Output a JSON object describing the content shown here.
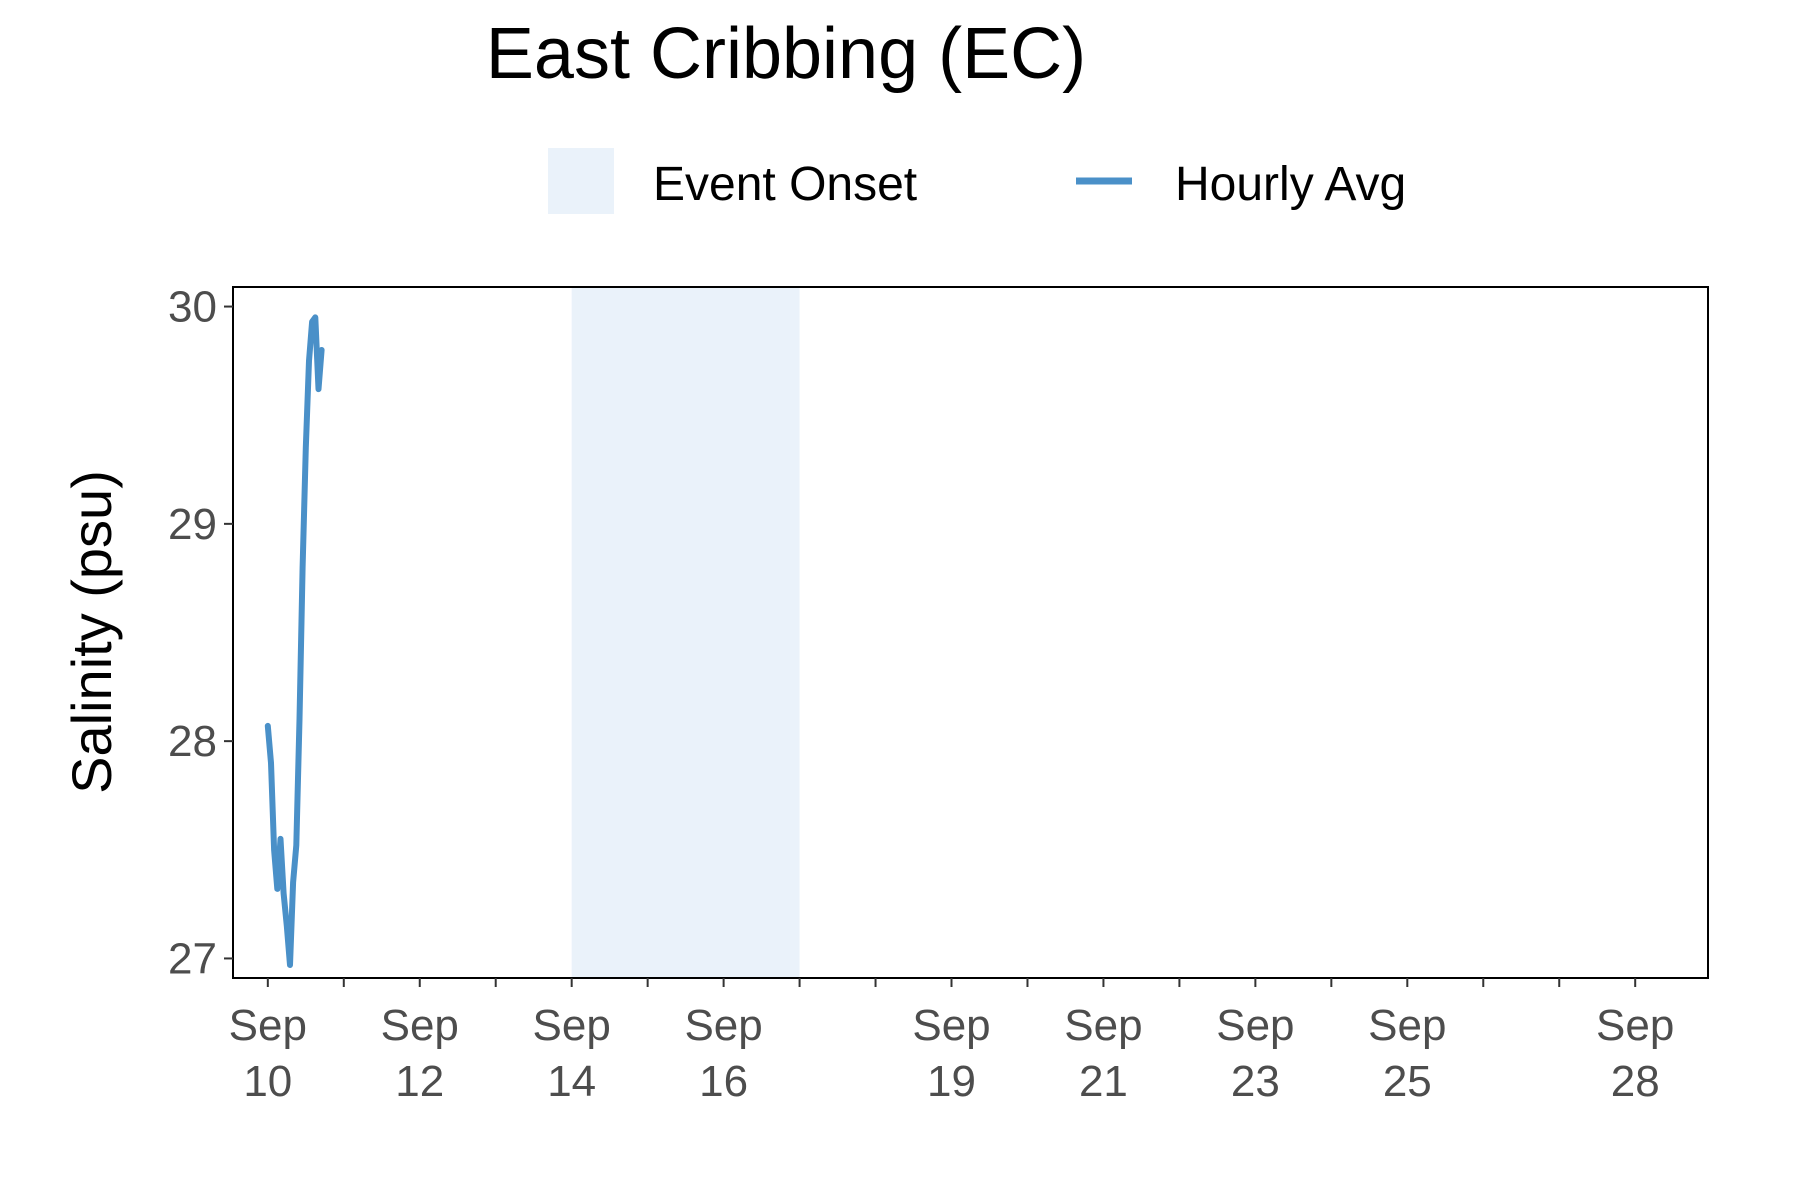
{
  "chart_data": {
    "type": "line",
    "title": "East Cribbing (EC)",
    "ylabel": "Salinity (psu)",
    "xlabel": "",
    "xlim": [
      "2023-09-09T13:00",
      "2023-09-28T23:00"
    ],
    "ylim": [
      26.91,
      30.09
    ],
    "y_ticks": [
      27,
      28,
      29,
      30
    ],
    "x_ticks": [
      {
        "date": "2023-09-10",
        "line1": "Sep",
        "line2": "10"
      },
      {
        "date": "2023-09-12",
        "line1": "Sep",
        "line2": "12"
      },
      {
        "date": "2023-09-14",
        "line1": "Sep",
        "line2": "14"
      },
      {
        "date": "2023-09-16",
        "line1": "Sep",
        "line2": "16"
      },
      {
        "date": "2023-09-19",
        "line1": "Sep",
        "line2": "19"
      },
      {
        "date": "2023-09-21",
        "line1": "Sep",
        "line2": "21"
      },
      {
        "date": "2023-09-23",
        "line1": "Sep",
        "line2": "23"
      },
      {
        "date": "2023-09-25",
        "line1": "Sep",
        "line2": "25"
      },
      {
        "date": "2023-09-28",
        "line1": "Sep",
        "line2": "28"
      }
    ],
    "x_minor_ticks": [
      "2023-09-11",
      "2023-09-13",
      "2023-09-15",
      "2023-09-17",
      "2023-09-18",
      "2023-09-20",
      "2023-09-22",
      "2023-09-24",
      "2023-09-26",
      "2023-09-27"
    ],
    "grid": false,
    "legend": {
      "placement": "top",
      "entries": [
        {
          "label": "Event Onset",
          "kind": "shaded-region",
          "color": "#eaf2fa"
        },
        {
          "label": "Hourly Avg",
          "kind": "line",
          "color": "#4a90c8"
        }
      ]
    },
    "shaded_regions": [
      {
        "name": "Event Onset",
        "x_start": "2023-09-14T00:00",
        "x_end": "2023-09-17T00:00",
        "color": "#eaf2fa"
      }
    ],
    "series": [
      {
        "name": "Hourly Avg",
        "color": "#4a90c8",
        "points": [
          [
            "2023-09-10T00:00",
            28.07
          ],
          [
            "2023-09-10T01:00",
            27.9
          ],
          [
            "2023-09-10T02:00",
            27.5
          ],
          [
            "2023-09-10T03:00",
            27.32
          ],
          [
            "2023-09-10T04:00",
            27.55
          ],
          [
            "2023-09-10T05:00",
            27.3
          ],
          [
            "2023-09-10T06:00",
            27.15
          ],
          [
            "2023-09-10T07:00",
            26.97
          ],
          [
            "2023-09-10T08:00",
            27.35
          ],
          [
            "2023-09-10T09:00",
            27.52
          ],
          [
            "2023-09-10T10:00",
            28.1
          ],
          [
            "2023-09-10T11:00",
            28.8
          ],
          [
            "2023-09-10T12:00",
            29.35
          ],
          [
            "2023-09-10T13:00",
            29.75
          ],
          [
            "2023-09-10T14:00",
            29.93
          ],
          [
            "2023-09-10T15:00",
            29.95
          ],
          [
            "2023-09-10T16:00",
            29.62
          ],
          [
            "2023-09-10T17:00",
            29.8
          ]
        ]
      }
    ]
  }
}
